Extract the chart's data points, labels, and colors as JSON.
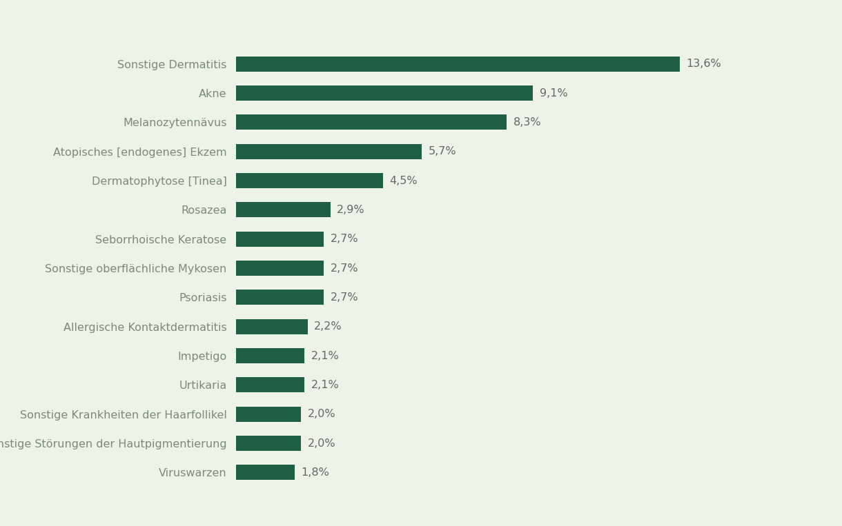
{
  "categories": [
    "Viruswarzen",
    "Sonstige Störungen der Hautpigmentierung",
    "Sonstige Krankheiten der Haarfollikel",
    "Urtikaria",
    "Impetigo",
    "Allergische Kontaktdermatitis",
    "Psoriasis",
    "Sonstige oberflächliche Mykosen",
    "Seborrhoische Keratose",
    "Rosazea",
    "Dermatophytose [Tinea]",
    "Atopisches [endogenes] Ekzem",
    "Melanozytennävus",
    "Akne",
    "Sonstige Dermatitis"
  ],
  "values": [
    1.8,
    2.0,
    2.0,
    2.1,
    2.1,
    2.2,
    2.7,
    2.7,
    2.7,
    2.9,
    4.5,
    5.7,
    8.3,
    9.1,
    13.6
  ],
  "labels": [
    "1,8%",
    "2,0%",
    "2,0%",
    "2,1%",
    "2,1%",
    "2,2%",
    "2,7%",
    "2,7%",
    "2,7%",
    "2,9%",
    "4,5%",
    "5,7%",
    "8,3%",
    "9,1%",
    "13,6%"
  ],
  "bar_color": "#1e5f45",
  "background_color": "#edf4e7",
  "label_color": "#7a8a7a",
  "value_color": "#666666",
  "bar_height": 0.52,
  "xlim": [
    0,
    16.5
  ],
  "figsize": [
    12.2,
    7.63
  ],
  "dpi": 100,
  "label_fontsize": 11.5,
  "value_fontsize": 11.5
}
